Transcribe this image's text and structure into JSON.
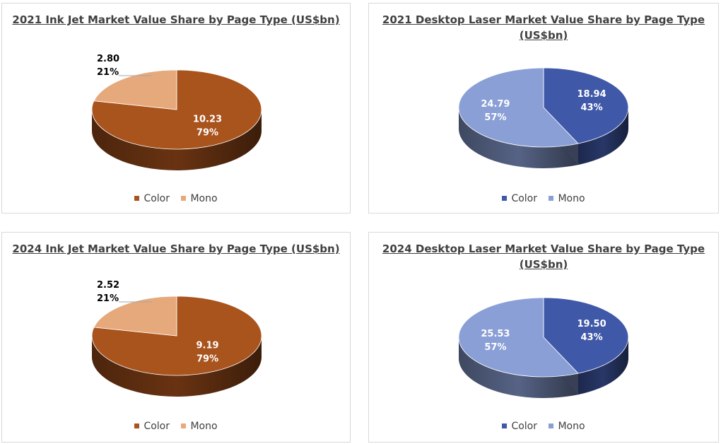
{
  "colors": {
    "inkjet_color": "#A9531D",
    "inkjet_mono": "#E6A97C",
    "laser_color": "#4058A8",
    "laser_mono": "#8A9FD6"
  },
  "chart_data": [
    {
      "type": "pie",
      "title": "2021 Ink Jet Market Value Share by Page Type (US$bn)",
      "categories": [
        "Color",
        "Mono"
      ],
      "values": [
        10.23,
        2.8
      ],
      "value_labels": [
        "10.23",
        "2.80"
      ],
      "percent_labels": [
        "79%",
        "21%"
      ],
      "legend": [
        "Color",
        "Mono"
      ],
      "legend_position": "bottom"
    },
    {
      "type": "pie",
      "title": "2021 Desktop Laser Market Value Share by Page Type (US$bn)",
      "categories": [
        "Color",
        "Mono"
      ],
      "values": [
        18.94,
        24.79
      ],
      "value_labels": [
        "18.94",
        "24.79"
      ],
      "percent_labels": [
        "43%",
        "57%"
      ],
      "legend": [
        "Color",
        "Mono"
      ],
      "legend_position": "bottom"
    },
    {
      "type": "pie",
      "title": "2024 Ink Jet Market Value Share by Page Type (US$bn)",
      "categories": [
        "Color",
        "Mono"
      ],
      "values": [
        9.19,
        2.52
      ],
      "value_labels": [
        "9.19",
        "2.52"
      ],
      "percent_labels": [
        "79%",
        "21%"
      ],
      "legend": [
        "Color",
        "Mono"
      ],
      "legend_position": "bottom"
    },
    {
      "type": "pie",
      "title": "2024 Desktop Laser Market Value Share by Page Type (US$bn)",
      "categories": [
        "Color",
        "Mono"
      ],
      "values": [
        19.5,
        25.53
      ],
      "value_labels": [
        "19.50",
        "25.53"
      ],
      "percent_labels": [
        "43%",
        "57%"
      ],
      "legend": [
        "Color",
        "Mono"
      ],
      "legend_position": "bottom"
    }
  ]
}
